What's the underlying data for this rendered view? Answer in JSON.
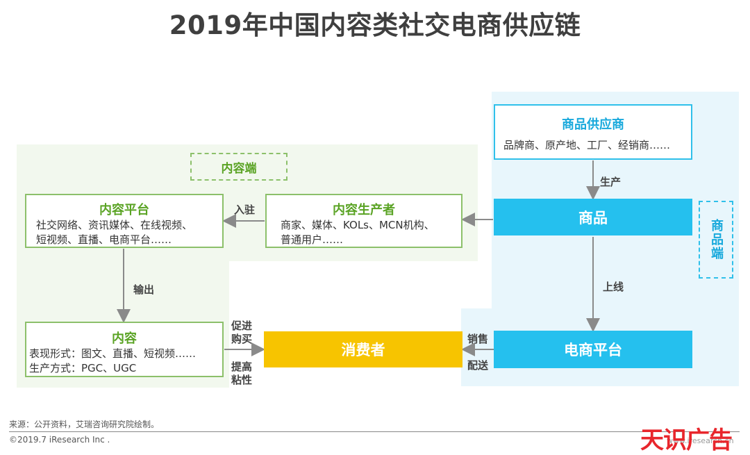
{
  "title": "2019年中国内容类社交电商供应链",
  "content_side": {
    "label": "内容端",
    "platform": {
      "title": "内容平台",
      "desc": [
        "社交网络、资讯媒体、在线视频、",
        "短视频、直播、电商平台……"
      ]
    },
    "producer": {
      "title": "内容生产者",
      "desc": [
        "商家、媒体、KOLs、MCN机构、",
        "普通用户……"
      ]
    },
    "content": {
      "title": "内容",
      "desc": [
        "表现形式：图文、直播、短视频……",
        "生产方式：PGC、UGC"
      ]
    }
  },
  "goods_side": {
    "label": "商品端",
    "supplier": {
      "title": "商品供应商",
      "desc": "品牌商、原产地、工厂、经销商……"
    },
    "product": "商品",
    "ecommerce": "电商平台"
  },
  "consumer": "消费者",
  "edge_labels": {
    "settle": "入驻",
    "output": "输出",
    "produce": "生产",
    "online": "上线",
    "sell": "销售",
    "deliver": "配送",
    "promote_1": "促进",
    "promote_2": "购买",
    "sticky_1": "提高",
    "sticky_2": "粘性"
  },
  "footer": {
    "source": "来源：公开资料，艾瑞咨询研究院绘制。",
    "copyright": "©2019.7 iResearch Inc .",
    "watermark": "天识广告",
    "watermark_url": "www.iresearch.cn"
  }
}
